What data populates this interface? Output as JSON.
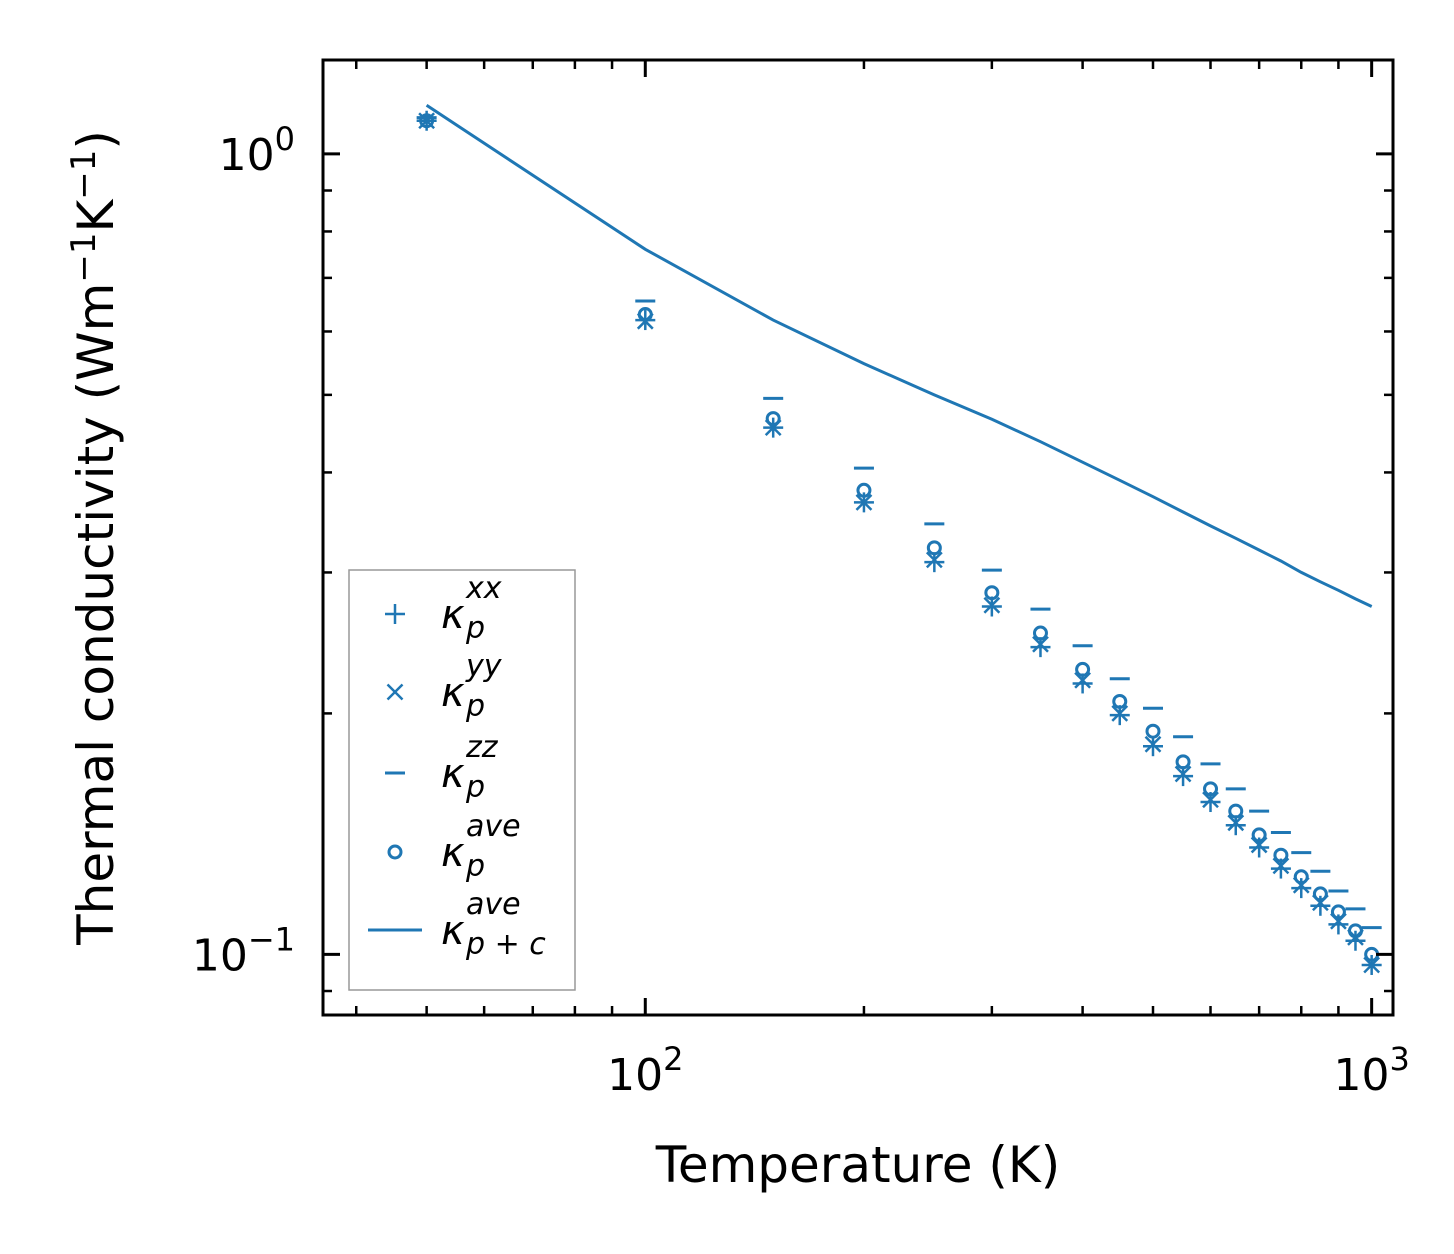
{
  "chart_data": {
    "type": "scatter",
    "title": "",
    "xlabel": "Temperature (K)",
    "ylabel": {
      "main": "Thermal conductivity (Wm",
      "sup1": "−1",
      "mid": "K",
      "sup2": "−1",
      "end": ")"
    },
    "xscale": "log",
    "yscale": "log",
    "xlim": [
      36,
      1070
    ],
    "ylim": [
      0.084,
      1.31
    ],
    "grid": false,
    "legend_position": "lower-left",
    "color": "#1f77b4",
    "x_ticks": [
      {
        "value": 100,
        "base": "10",
        "exp": "2"
      },
      {
        "value": 1000,
        "base": "10",
        "exp": "3"
      }
    ],
    "y_ticks": [
      {
        "value": 1,
        "base": "10",
        "exp": "0"
      },
      {
        "value": 0.1,
        "base": "10",
        "exp": "−1"
      }
    ],
    "x": [
      50,
      100,
      150,
      200,
      250,
      300,
      350,
      400,
      450,
      500,
      550,
      600,
      650,
      700,
      750,
      800,
      850,
      900,
      950,
      1000
    ],
    "series": [
      {
        "key": "kxx",
        "name": "κ_p^xx",
        "marker": "plus",
        "legend": {
          "base": "κ",
          "sub": "p",
          "sup": "xx"
        },
        "values": [
          1.1,
          0.62,
          0.455,
          0.367,
          0.309,
          0.272,
          0.242,
          0.218,
          0.199,
          0.182,
          0.167,
          0.155,
          0.145,
          0.136,
          0.128,
          0.121,
          0.115,
          0.109,
          0.104,
          0.097
        ]
      },
      {
        "key": "kyy",
        "name": "κ_p^yy",
        "marker": "x",
        "legend": {
          "base": "κ",
          "sub": "p",
          "sup": "yy"
        },
        "values": [
          1.1,
          0.618,
          0.455,
          0.367,
          0.311,
          0.273,
          0.244,
          0.22,
          0.2,
          0.183,
          0.168,
          0.156,
          0.146,
          0.137,
          0.129,
          0.122,
          0.116,
          0.11,
          0.105,
          0.097
        ]
      },
      {
        "key": "kzz",
        "name": "κ_p^zz",
        "marker": "hline",
        "legend": {
          "base": "κ",
          "sub": "p",
          "sup": "zz"
        },
        "values": [
          1.11,
          0.655,
          0.495,
          0.405,
          0.345,
          0.302,
          0.27,
          0.243,
          0.221,
          0.203,
          0.187,
          0.173,
          0.161,
          0.151,
          0.142,
          0.134,
          0.127,
          0.12,
          0.114,
          0.108
        ]
      },
      {
        "key": "kave",
        "name": "κ_p^ave",
        "marker": "circle",
        "legend": {
          "base": "κ",
          "sub": "p",
          "sup": "ave"
        },
        "values": [
          1.1,
          0.63,
          0.467,
          0.38,
          0.322,
          0.283,
          0.252,
          0.227,
          0.207,
          0.19,
          0.174,
          0.161,
          0.151,
          0.141,
          0.133,
          0.125,
          0.119,
          0.113,
          0.107,
          0.1
        ]
      },
      {
        "key": "kpc",
        "name": "κ_p+c^ave",
        "marker": "line",
        "legend": {
          "base": "κ",
          "sub": "p + c",
          "sup": "ave"
        },
        "values": [
          1.15,
          0.76,
          0.62,
          0.547,
          0.5,
          0.466,
          0.437,
          0.412,
          0.391,
          0.373,
          0.357,
          0.343,
          0.331,
          0.32,
          0.31,
          0.3,
          0.292,
          0.285,
          0.278,
          0.272
        ]
      }
    ]
  }
}
